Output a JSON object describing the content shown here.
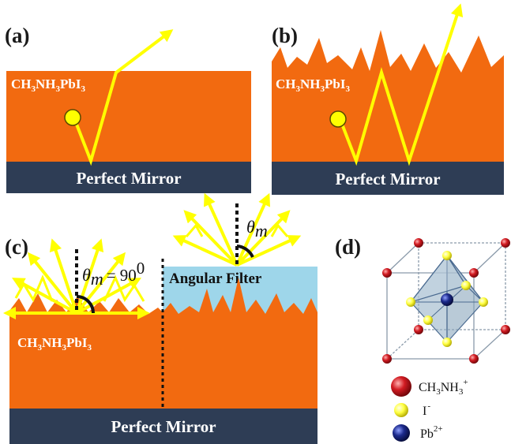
{
  "panels": {
    "a": {
      "letter": "(a)",
      "material": "CH3NH3PbI3",
      "mirror": "Perfect Mirror"
    },
    "b": {
      "letter": "(b)",
      "material": "CH3NH3PbI3",
      "mirror": "Perfect Mirror"
    },
    "c": {
      "letter": "(c)",
      "material": "CH3NH3PbI3",
      "mirror": "Perfect Mirror",
      "filter": "Angular Filter",
      "theta_symbol": "θ",
      "theta_sub": "m",
      "theta_eq": "= 90",
      "theta_sup": "0"
    },
    "d": {
      "letter": "(d)"
    }
  },
  "legend": {
    "ion1": {
      "base": "CH",
      "s1": "3",
      "mid": "NH",
      "s2": "3",
      "sup": "+"
    },
    "ion2": {
      "base": "I",
      "sup": "-"
    },
    "ion3": {
      "base": "Pb",
      "sup": "2+"
    }
  },
  "colors": {
    "perovskite": "#f26a10",
    "mirror": "#2e3d55",
    "filter": "#9ed6ea",
    "ray": "#ffff00",
    "ch3nh3": "#c4161c",
    "iodide": "#ffff33",
    "lead": "#1c2a8c"
  }
}
